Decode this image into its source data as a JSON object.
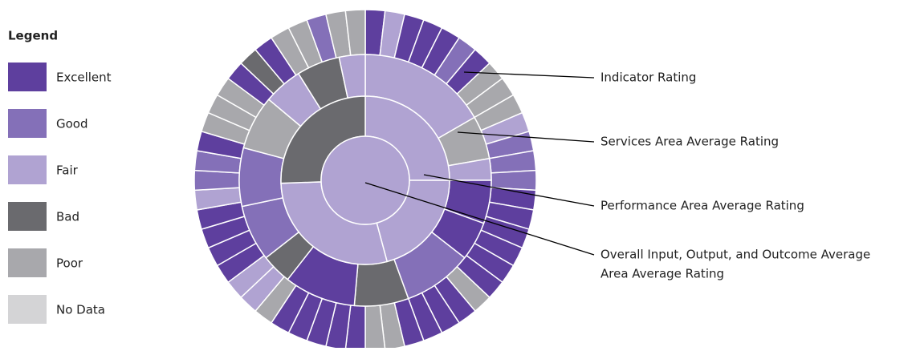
{
  "legend": {
    "title": "Legend",
    "items": [
      {
        "label": "Excellent",
        "color": "#5e3f9e"
      },
      {
        "label": "Good",
        "color": "#8470b8"
      },
      {
        "label": "Fair",
        "color": "#b0a3d2"
      },
      {
        "label": "Bad",
        "color": "#6a6a6e"
      },
      {
        "label": "Poor",
        "color": "#a8a8ac"
      },
      {
        "label": "No Data",
        "color": "#d4d4d6"
      }
    ]
  },
  "callouts": [
    {
      "lines": [
        "Indicator Rating"
      ]
    },
    {
      "lines": [
        "Services Area Average Rating"
      ]
    },
    {
      "lines": [
        "Performance Area Average Rating"
      ]
    },
    {
      "lines": [
        "Overall Input, Output, and Outcome Average",
        "Area Average Rating"
      ]
    }
  ]
}
